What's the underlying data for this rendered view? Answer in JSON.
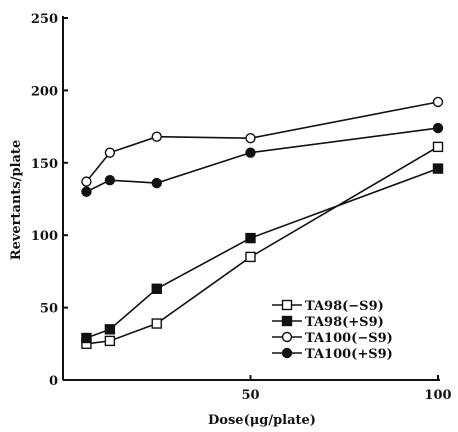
{
  "chart_data": {
    "type": "line",
    "xlabel": "Dose(μg/plate)",
    "ylabel": "Revertants/plate",
    "xlim": [
      0,
      100
    ],
    "ylim": [
      0,
      250
    ],
    "x_ticks": [
      {
        "value": 50,
        "label": "50"
      },
      {
        "value": 100,
        "label": "100"
      }
    ],
    "y_ticks": [
      {
        "value": 0,
        "label": "0"
      },
      {
        "value": 50,
        "label": "50"
      },
      {
        "value": 100,
        "label": "100"
      },
      {
        "value": 150,
        "label": "150"
      },
      {
        "value": 200,
        "label": "200"
      },
      {
        "value": 250,
        "label": "250"
      }
    ],
    "grid": false,
    "legend_position": "bottom-right",
    "series": [
      {
        "name": "TA98(−S9)",
        "marker": "open-square",
        "points": [
          [
            6.25,
            25
          ],
          [
            12.5,
            27
          ],
          [
            25,
            39
          ],
          [
            50,
            85
          ],
          [
            100,
            161
          ]
        ]
      },
      {
        "name": "TA98(+S9)",
        "marker": "filled-square",
        "points": [
          [
            6.25,
            29
          ],
          [
            12.5,
            35
          ],
          [
            25,
            63
          ],
          [
            50,
            98
          ],
          [
            100,
            146
          ]
        ]
      },
      {
        "name": "TA100(−S9)",
        "marker": "open-circle",
        "points": [
          [
            6.25,
            137
          ],
          [
            12.5,
            157
          ],
          [
            25,
            168
          ],
          [
            50,
            167
          ],
          [
            100,
            192
          ]
        ]
      },
      {
        "name": "TA100(+S9)",
        "marker": "filled-circle",
        "points": [
          [
            6.25,
            130
          ],
          [
            12.5,
            138
          ],
          [
            25,
            136
          ],
          [
            50,
            157
          ],
          [
            100,
            174
          ]
        ]
      }
    ]
  }
}
